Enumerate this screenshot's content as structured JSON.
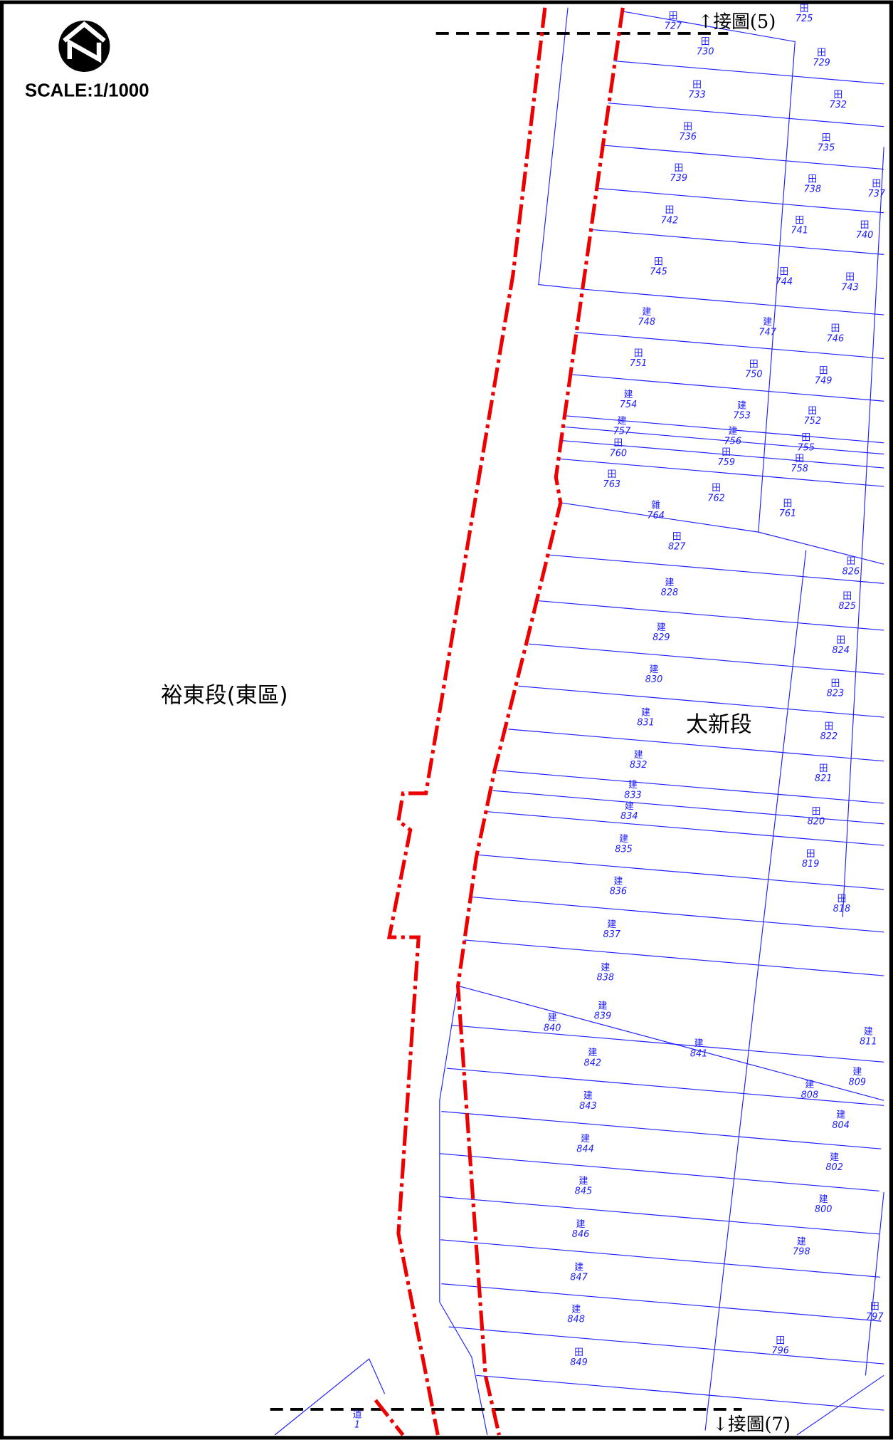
{
  "header": {
    "scale": "SCALE:1/1000"
  },
  "sections": {
    "west": "裕東段(東區)",
    "east": "太新段"
  },
  "links": {
    "north": "↑接圖(5)",
    "south": "↓接圖(7)"
  },
  "parcels": [
    {
      "use": "田",
      "number": "727"
    },
    {
      "use": "田",
      "number": "725"
    },
    {
      "use": "田",
      "number": "730"
    },
    {
      "use": "田",
      "number": "729"
    },
    {
      "use": "田",
      "number": "733"
    },
    {
      "use": "田",
      "number": "732"
    },
    {
      "use": "田",
      "number": "736"
    },
    {
      "use": "田",
      "number": "735"
    },
    {
      "use": "田",
      "number": "739"
    },
    {
      "use": "田",
      "number": "738"
    },
    {
      "use": "田",
      "number": "737"
    },
    {
      "use": "田",
      "number": "742"
    },
    {
      "use": "田",
      "number": "741"
    },
    {
      "use": "田",
      "number": "740"
    },
    {
      "use": "田",
      "number": "745"
    },
    {
      "use": "田",
      "number": "744"
    },
    {
      "use": "田",
      "number": "743"
    },
    {
      "use": "建",
      "number": "748"
    },
    {
      "use": "建",
      "number": "747"
    },
    {
      "use": "田",
      "number": "746"
    },
    {
      "use": "田",
      "number": "751"
    },
    {
      "use": "田",
      "number": "750"
    },
    {
      "use": "田",
      "number": "749"
    },
    {
      "use": "建",
      "number": "754"
    },
    {
      "use": "建",
      "number": "753"
    },
    {
      "use": "田",
      "number": "752"
    },
    {
      "use": "建",
      "number": "757"
    },
    {
      "use": "建",
      "number": "756"
    },
    {
      "use": "田",
      "number": "755"
    },
    {
      "use": "田",
      "number": "760"
    },
    {
      "use": "田",
      "number": "759"
    },
    {
      "use": "田",
      "number": "758"
    },
    {
      "use": "田",
      "number": "763"
    },
    {
      "use": "田",
      "number": "762"
    },
    {
      "use": "田",
      "number": "761"
    },
    {
      "use": "雜",
      "number": "764"
    },
    {
      "use": "田",
      "number": "827"
    },
    {
      "use": "田",
      "number": "826"
    },
    {
      "use": "建",
      "number": "828"
    },
    {
      "use": "田",
      "number": "825"
    },
    {
      "use": "建",
      "number": "829"
    },
    {
      "use": "田",
      "number": "824"
    },
    {
      "use": "建",
      "number": "830"
    },
    {
      "use": "田",
      "number": "823"
    },
    {
      "use": "建",
      "number": "831"
    },
    {
      "use": "田",
      "number": "822"
    },
    {
      "use": "建",
      "number": "832"
    },
    {
      "use": "田",
      "number": "821"
    },
    {
      "use": "建",
      "number": "833"
    },
    {
      "use": "建",
      "number": "834"
    },
    {
      "use": "田",
      "number": "820"
    },
    {
      "use": "建",
      "number": "835"
    },
    {
      "use": "田",
      "number": "819"
    },
    {
      "use": "建",
      "number": "836"
    },
    {
      "use": "田",
      "number": "818"
    },
    {
      "use": "建",
      "number": "837"
    },
    {
      "use": "建",
      "number": "838"
    },
    {
      "use": "建",
      "number": "839"
    },
    {
      "use": "建",
      "number": "840"
    },
    {
      "use": "建",
      "number": "841"
    },
    {
      "use": "建",
      "number": "811"
    },
    {
      "use": "建",
      "number": "842"
    },
    {
      "use": "建",
      "number": "809"
    },
    {
      "use": "建",
      "number": "808"
    },
    {
      "use": "建",
      "number": "843"
    },
    {
      "use": "建",
      "number": "804"
    },
    {
      "use": "建",
      "number": "844"
    },
    {
      "use": "建",
      "number": "802"
    },
    {
      "use": "建",
      "number": "845"
    },
    {
      "use": "建",
      "number": "800"
    },
    {
      "use": "建",
      "number": "846"
    },
    {
      "use": "建",
      "number": "798"
    },
    {
      "use": "建",
      "number": "847"
    },
    {
      "use": "田",
      "number": "797"
    },
    {
      "use": "建",
      "number": "848"
    },
    {
      "use": "田",
      "number": "796"
    },
    {
      "use": "田",
      "number": "849"
    },
    {
      "use": "道",
      "number": "1"
    }
  ]
}
